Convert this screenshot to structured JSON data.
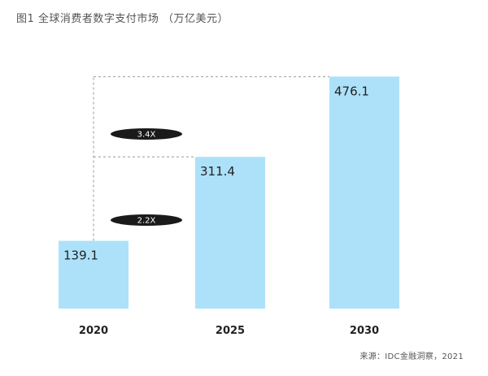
{
  "title": "图1 全球消费者数字支付市场 （万亿美元）",
  "source": "来源：IDC金融洞察，2021",
  "colors": {
    "bar": "#ade1f9",
    "text": "#222222",
    "pill": "#1a1a1a",
    "pill_text": "#ffffff",
    "connector": "#999999"
  },
  "chart_data": {
    "type": "bar",
    "title": "图1 全球消费者数字支付市场 （万亿美元）",
    "xlabel": "",
    "ylabel": "",
    "categories": [
      "2020",
      "2025",
      "2030"
    ],
    "values": [
      139.1,
      311.4,
      476.1
    ],
    "value_labels": [
      "139.1",
      "311.4",
      "476.1"
    ],
    "ylim": [
      0,
      500
    ],
    "grid": false,
    "annotations": [
      {
        "text": "2.2X",
        "from": "2020",
        "to": "2025"
      },
      {
        "text": "3.4X",
        "from": "2020",
        "to": "2030"
      }
    ]
  }
}
